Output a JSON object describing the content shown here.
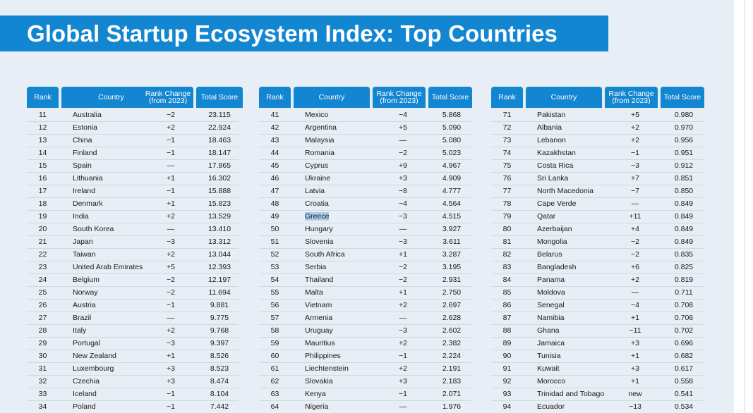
{
  "title": "Global Startup Ecosystem Index: Top Countries",
  "headers": {
    "rank": "Rank",
    "country": "Country",
    "change_line1": "Rank Change",
    "change_line2": "(from 2023)",
    "score": "Total Score"
  },
  "highlight_color": "#a9cdea",
  "accent_color": "#1386d1",
  "columns": [
    {
      "rows": [
        {
          "rank": "11",
          "country": "Australia",
          "change": "−2",
          "score": "23.115"
        },
        {
          "rank": "12",
          "country": "Estonia",
          "change": "+2",
          "score": "22.924"
        },
        {
          "rank": "13",
          "country": "China",
          "change": "−1",
          "score": "18.463"
        },
        {
          "rank": "14",
          "country": "Finland",
          "change": "−1",
          "score": "18.147"
        },
        {
          "rank": "15",
          "country": "Spain",
          "change": "—",
          "score": "17.865"
        },
        {
          "rank": "16",
          "country": "Lithuania",
          "change": "+1",
          "score": "16.302"
        },
        {
          "rank": "17",
          "country": "Ireland",
          "change": "−1",
          "score": "15.888"
        },
        {
          "rank": "18",
          "country": "Denmark",
          "change": "+1",
          "score": "15.823"
        },
        {
          "rank": "19",
          "country": "India",
          "change": "+2",
          "score": "13.529"
        },
        {
          "rank": "20",
          "country": "South Korea",
          "change": "—",
          "score": "13.410"
        },
        {
          "rank": "21",
          "country": "Japan",
          "change": "−3",
          "score": "13.312"
        },
        {
          "rank": "22",
          "country": "Taiwan",
          "change": "+2",
          "score": "13.044"
        },
        {
          "rank": "23",
          "country": "United Arab Emirates",
          "change": "+5",
          "score": "12.393"
        },
        {
          "rank": "24",
          "country": "Belgium",
          "change": "−2",
          "score": "12.197"
        },
        {
          "rank": "25",
          "country": "Norway",
          "change": "−2",
          "score": "11.694"
        },
        {
          "rank": "26",
          "country": "Austria",
          "change": "−1",
          "score": "9.881"
        },
        {
          "rank": "27",
          "country": "Brazil",
          "change": "—",
          "score": "9.775"
        },
        {
          "rank": "28",
          "country": "Italy",
          "change": "+2",
          "score": "9.768"
        },
        {
          "rank": "29",
          "country": "Portugal",
          "change": "−3",
          "score": "9.397"
        },
        {
          "rank": "30",
          "country": "New Zealand",
          "change": "+1",
          "score": "8.526"
        },
        {
          "rank": "31",
          "country": "Luxembourg",
          "change": "+3",
          "score": "8.523"
        },
        {
          "rank": "32",
          "country": "Czechia",
          "change": "+3",
          "score": "8.474"
        },
        {
          "rank": "33",
          "country": "Iceland",
          "change": "−1",
          "score": "8.104"
        },
        {
          "rank": "34",
          "country": "Poland",
          "change": "−1",
          "score": "7.442"
        }
      ]
    },
    {
      "rows": [
        {
          "rank": "41",
          "country": "Mexico",
          "change": "−4",
          "score": "5.868"
        },
        {
          "rank": "42",
          "country": "Argentina",
          "change": "+5",
          "score": "5.090"
        },
        {
          "rank": "43",
          "country": "Malaysia",
          "change": "—",
          "score": "5.080"
        },
        {
          "rank": "44",
          "country": "Romania",
          "change": "−2",
          "score": "5.023"
        },
        {
          "rank": "45",
          "country": "Cyprus",
          "change": "+9",
          "score": "4.967"
        },
        {
          "rank": "46",
          "country": "Ukraine",
          "change": "+3",
          "score": "4.909"
        },
        {
          "rank": "47",
          "country": "Latvia",
          "change": "−8",
          "score": "4.777"
        },
        {
          "rank": "48",
          "country": "Croatia",
          "change": "−4",
          "score": "4.564"
        },
        {
          "rank": "49",
          "country": "Greece",
          "change": "−3",
          "score": "4.515",
          "highlight": true
        },
        {
          "rank": "50",
          "country": "Hungary",
          "change": "—",
          "score": "3.927"
        },
        {
          "rank": "51",
          "country": "Slovenia",
          "change": "−3",
          "score": "3.611"
        },
        {
          "rank": "52",
          "country": "South Africa",
          "change": "+1",
          "score": "3.287"
        },
        {
          "rank": "53",
          "country": "Serbia",
          "change": "−2",
          "score": "3.195"
        },
        {
          "rank": "54",
          "country": "Thailand",
          "change": "−2",
          "score": "2.931"
        },
        {
          "rank": "55",
          "country": "Malta",
          "change": "+1",
          "score": "2.750"
        },
        {
          "rank": "56",
          "country": "Vietnam",
          "change": "+2",
          "score": "2.697"
        },
        {
          "rank": "57",
          "country": "Armenia",
          "change": "—",
          "score": "2.628"
        },
        {
          "rank": "58",
          "country": "Uruguay",
          "change": "−3",
          "score": "2.602"
        },
        {
          "rank": "59",
          "country": "Mauritius",
          "change": "+2",
          "score": "2.382"
        },
        {
          "rank": "60",
          "country": "Philippines",
          "change": "−1",
          "score": "2.224"
        },
        {
          "rank": "61",
          "country": "Liechtenstein",
          "change": "+2",
          "score": "2.191"
        },
        {
          "rank": "62",
          "country": "Slovakia",
          "change": "+3",
          "score": "2.183"
        },
        {
          "rank": "63",
          "country": "Kenya",
          "change": "−1",
          "score": "2.071"
        },
        {
          "rank": "64",
          "country": "Nigeria",
          "change": "—",
          "score": "1.976"
        }
      ]
    },
    {
      "rows": [
        {
          "rank": "71",
          "country": "Pakistan",
          "change": "+5",
          "score": "0.980"
        },
        {
          "rank": "72",
          "country": "Albania",
          "change": "+2",
          "score": "0.970"
        },
        {
          "rank": "73",
          "country": "Lebanon",
          "change": "+2",
          "score": "0.956"
        },
        {
          "rank": "74",
          "country": "Kazakhstan",
          "change": "−1",
          "score": "0.951"
        },
        {
          "rank": "75",
          "country": "Costa Rica",
          "change": "−3",
          "score": "0.912"
        },
        {
          "rank": "76",
          "country": "Sri Lanka",
          "change": "+7",
          "score": "0.851"
        },
        {
          "rank": "77",
          "country": "North Macedonia",
          "change": "−7",
          "score": "0.850"
        },
        {
          "rank": "78",
          "country": "Cape Verde",
          "change": "—",
          "score": "0.849"
        },
        {
          "rank": "79",
          "country": "Qatar",
          "change": "+11",
          "score": "0.849"
        },
        {
          "rank": "80",
          "country": "Azerbaijan",
          "change": "+4",
          "score": "0.849"
        },
        {
          "rank": "81",
          "country": "Mongolia",
          "change": "−2",
          "score": "0.849"
        },
        {
          "rank": "82",
          "country": "Belarus",
          "change": "−2",
          "score": "0.835"
        },
        {
          "rank": "83",
          "country": "Bangladesh",
          "change": "+6",
          "score": "0.825"
        },
        {
          "rank": "84",
          "country": "Panama",
          "change": "+2",
          "score": "0.819"
        },
        {
          "rank": "85",
          "country": "Moldova",
          "change": "—",
          "score": "0.711"
        },
        {
          "rank": "86",
          "country": "Senegal",
          "change": "−4",
          "score": "0.708"
        },
        {
          "rank": "87",
          "country": "Namibia",
          "change": "+1",
          "score": "0.706"
        },
        {
          "rank": "88",
          "country": "Ghana",
          "change": "−11",
          "score": "0.702"
        },
        {
          "rank": "89",
          "country": "Jamaica",
          "change": "+3",
          "score": "0.696"
        },
        {
          "rank": "90",
          "country": "Tunisia",
          "change": "+1",
          "score": "0.682"
        },
        {
          "rank": "91",
          "country": "Kuwait",
          "change": "+3",
          "score": "0.617"
        },
        {
          "rank": "92",
          "country": "Morocco",
          "change": "+1",
          "score": "0.558"
        },
        {
          "rank": "93",
          "country": "Trinidad and Tobago",
          "change": "new",
          "score": "0.541"
        },
        {
          "rank": "94",
          "country": "Ecuador",
          "change": "−13",
          "score": "0.534"
        }
      ]
    }
  ]
}
